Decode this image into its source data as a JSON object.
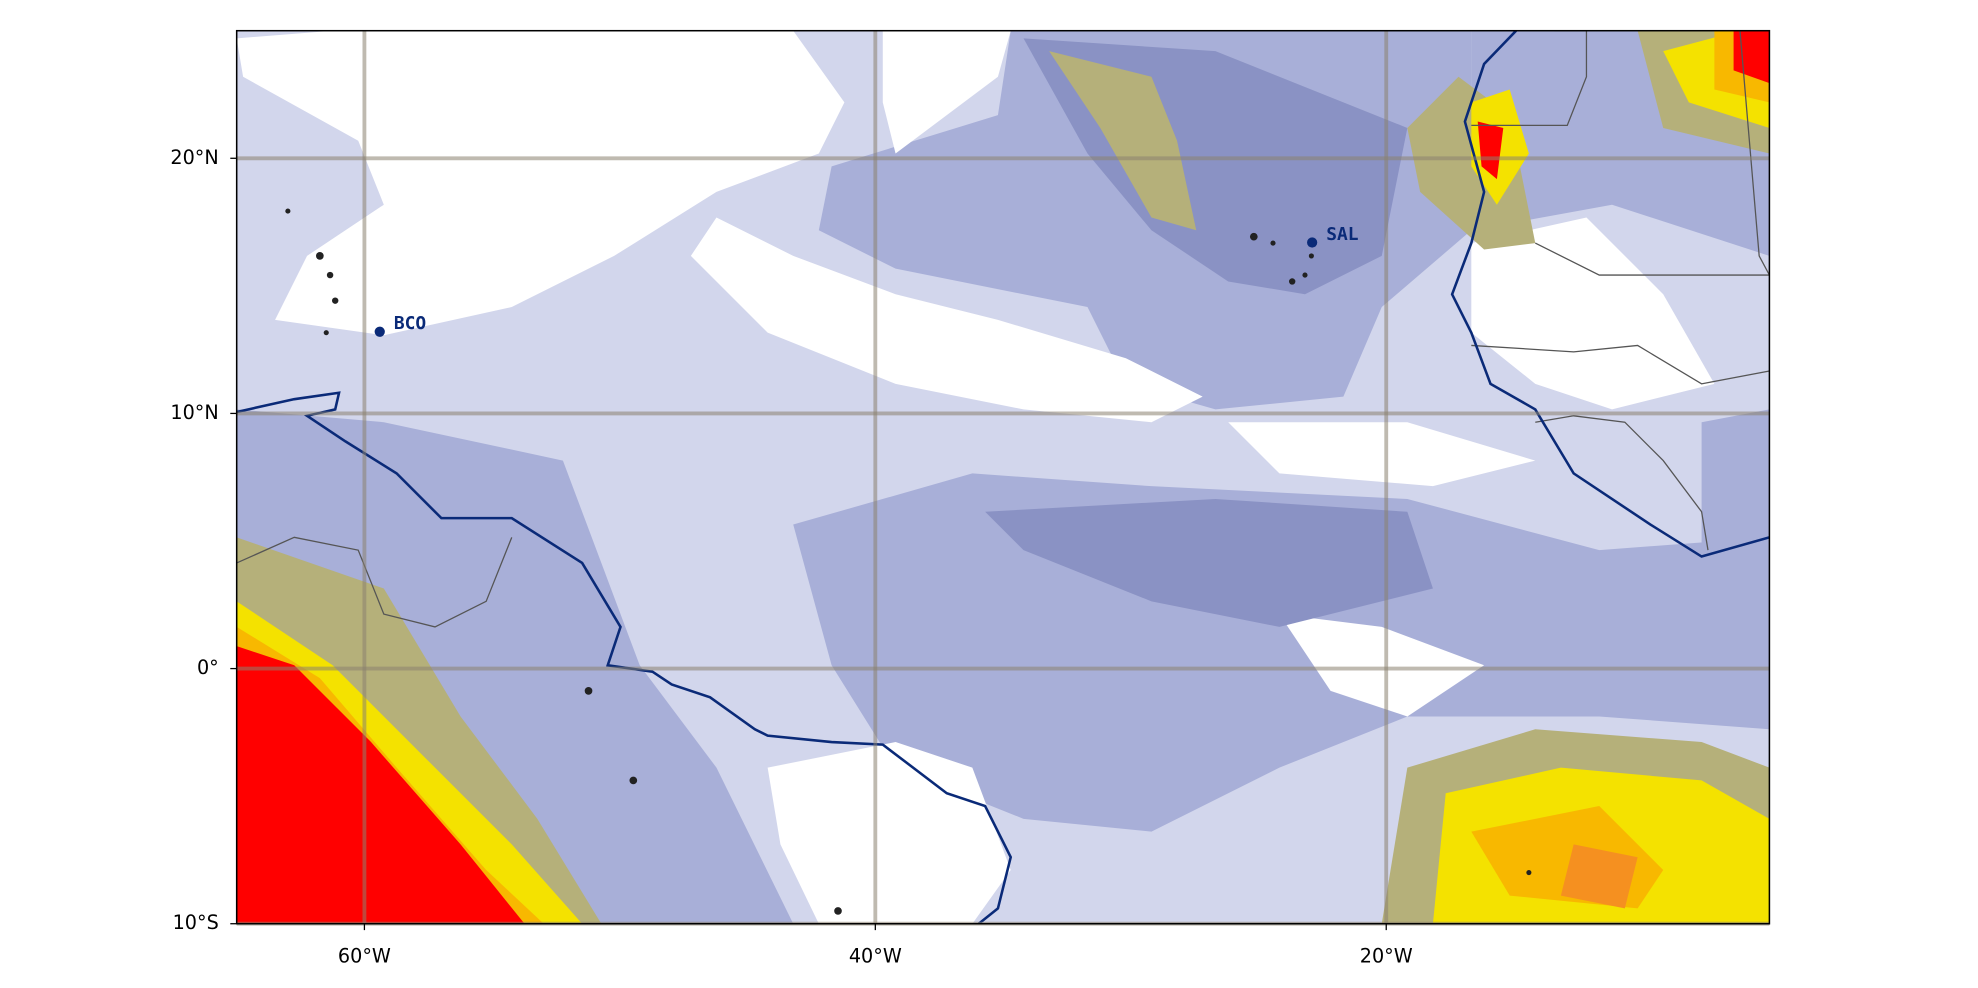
{
  "map": {
    "xlim": [
      -65,
      -5
    ],
    "ylim": [
      -10,
      25
    ],
    "xticks": [
      {
        "value": -60,
        "label": "60°W"
      },
      {
        "value": -40,
        "label": "40°W"
      },
      {
        "value": -20,
        "label": "20°W"
      }
    ],
    "yticks": [
      {
        "value": 20,
        "label": "20°N"
      },
      {
        "value": 10,
        "label": "10°N"
      },
      {
        "value": 0,
        "label": "0°"
      },
      {
        "value": -10,
        "label": "10°S"
      }
    ],
    "stations": [
      {
        "name": "BCO",
        "lon": -59.4,
        "lat": 13.2
      },
      {
        "name": "SAL",
        "lon": -22.9,
        "lat": 16.7
      }
    ],
    "grid": true
  }
}
